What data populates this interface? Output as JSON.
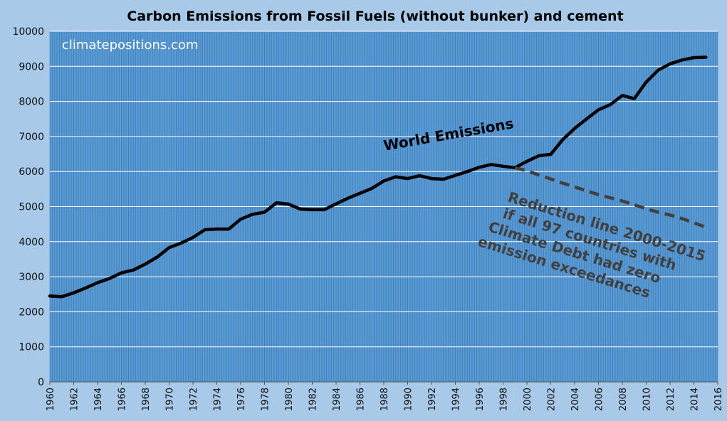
{
  "chart_data": {
    "type": "line",
    "title": "Carbon Emissions from Fossil Fuels (without bunker) and cement",
    "watermark": "climatepositions.com",
    "xlabel": "",
    "ylabel": "",
    "xlim": [
      1960,
      2016
    ],
    "ylim": [
      0,
      10000
    ],
    "y_ticks": [
      0,
      1000,
      2000,
      3000,
      4000,
      5000,
      6000,
      7000,
      8000,
      9000,
      10000
    ],
    "x_ticks": [
      1960,
      1962,
      1964,
      1966,
      1968,
      1970,
      1972,
      1974,
      1976,
      1978,
      1980,
      1982,
      1984,
      1986,
      1988,
      1990,
      1992,
      1994,
      1996,
      1998,
      2000,
      2002,
      2004,
      2006,
      2008,
      2010,
      2012,
      2014,
      2016
    ],
    "grid": true,
    "legend": "none",
    "colors": {
      "plot_background": "#5b9bd5",
      "page_background": "#a9c9e8",
      "series": "#000000",
      "gridline": "#ffffff"
    },
    "series": [
      {
        "label": "World Emissions",
        "style": "solid",
        "x": [
          1960,
          1961,
          1962,
          1963,
          1964,
          1965,
          1966,
          1967,
          1968,
          1969,
          1970,
          1971,
          1972,
          1973,
          1974,
          1975,
          1976,
          1977,
          1978,
          1979,
          1980,
          1981,
          1982,
          1983,
          1984,
          1985,
          1986,
          1987,
          1988,
          1989,
          1990,
          1991,
          1992,
          1993,
          1994,
          1995,
          1996,
          1997,
          1998,
          1999,
          2000,
          2001,
          2002,
          2003,
          2004,
          2005,
          2006,
          2007,
          2008,
          2009,
          2010,
          2011,
          2012,
          2013,
          2014,
          2015
        ],
        "values": [
          2450,
          2430,
          2540,
          2680,
          2830,
          2950,
          3110,
          3190,
          3360,
          3560,
          3830,
          3960,
          4120,
          4340,
          4360,
          4360,
          4640,
          4780,
          4840,
          5110,
          5070,
          4930,
          4910,
          4910,
          5080,
          5240,
          5380,
          5520,
          5730,
          5850,
          5800,
          5880,
          5800,
          5780,
          5890,
          6000,
          6120,
          6200,
          6150,
          6110,
          6290,
          6450,
          6490,
          6910,
          7230,
          7500,
          7760,
          7910,
          8170,
          8080,
          8550,
          8890,
          9070,
          9180,
          9250,
          9260
        ]
      },
      {
        "label": "Reduction line 2000-2015 if all 97 countries with Climate Debt had zero emission exceedances",
        "style": "dashed",
        "x": [
          1999,
          2000,
          2001,
          2002,
          2003,
          2004,
          2005,
          2006,
          2007,
          2008,
          2009,
          2010,
          2011,
          2012,
          2013,
          2014,
          2015
        ],
        "values": [
          6110,
          6020,
          5900,
          5790,
          5670,
          5560,
          5450,
          5340,
          5250,
          5160,
          5050,
          4940,
          4840,
          4760,
          4660,
          4540,
          4410
        ]
      }
    ],
    "annotations": [
      {
        "text": "World Emissions"
      },
      {
        "lines": [
          "Reduction line 2000-2015",
          "if all 97 countries with",
          "Climate Debt had zero",
          "emission exceedances"
        ]
      }
    ]
  }
}
